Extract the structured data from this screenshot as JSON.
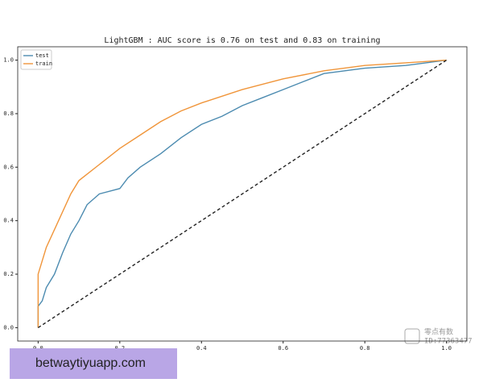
{
  "chart_data": {
    "type": "line",
    "title": "LightGBM : AUC score is 0.76 on test and 0.83 on training",
    "series": [
      {
        "name": "test",
        "color": "#4c8bb0",
        "x": [
          0,
          0,
          0.01,
          0.02,
          0.04,
          0.06,
          0.08,
          0.1,
          0.12,
          0.15,
          0.2,
          0.22,
          0.25,
          0.3,
          0.35,
          0.4,
          0.45,
          0.5,
          0.55,
          0.6,
          0.65,
          0.7,
          0.8,
          0.9,
          0.95,
          1
        ],
        "values": [
          0,
          0.08,
          0.1,
          0.15,
          0.2,
          0.28,
          0.35,
          0.4,
          0.46,
          0.5,
          0.52,
          0.56,
          0.6,
          0.65,
          0.71,
          0.76,
          0.79,
          0.83,
          0.86,
          0.89,
          0.92,
          0.95,
          0.97,
          0.98,
          0.99,
          1
        ]
      },
      {
        "name": "train",
        "color": "#f0953a",
        "x": [
          0,
          0,
          0.02,
          0.05,
          0.08,
          0.1,
          0.15,
          0.2,
          0.25,
          0.3,
          0.35,
          0.4,
          0.5,
          0.6,
          0.7,
          0.8,
          0.9,
          1
        ],
        "values": [
          0,
          0.2,
          0.3,
          0.4,
          0.5,
          0.55,
          0.61,
          0.67,
          0.72,
          0.77,
          0.81,
          0.84,
          0.89,
          0.93,
          0.96,
          0.98,
          0.99,
          1
        ]
      },
      {
        "color": "#222222",
        "dashed": true,
        "x": [
          0,
          1
        ],
        "values": [
          0,
          1
        ]
      }
    ],
    "xlim": [
      -0.05,
      1.05
    ],
    "ylim": [
      -0.05,
      1.05
    ],
    "xticks": [
      {
        "value": 0,
        "label": "0.0"
      },
      {
        "value": 0.2,
        "label": "0.2"
      },
      {
        "value": 0.4,
        "label": "0.4"
      },
      {
        "value": 0.6,
        "label": "0.6"
      },
      {
        "value": 0.8,
        "label": "0.8"
      },
      {
        "value": 1,
        "label": "1.0"
      }
    ],
    "yticks": [
      {
        "value": 0,
        "label": "0.0"
      },
      {
        "value": 0.2,
        "label": "0.2"
      },
      {
        "value": 0.4,
        "label": "0.4"
      },
      {
        "value": 0.6,
        "label": "0.6"
      },
      {
        "value": 0.8,
        "label": "0.8"
      },
      {
        "value": 1,
        "label": "1.0"
      }
    ],
    "legend": "upper-left"
  },
  "watermark": {
    "name": "零点有数",
    "id": "ID:77363477"
  },
  "banner": {
    "text": "betwaytiyuapp.com"
  }
}
